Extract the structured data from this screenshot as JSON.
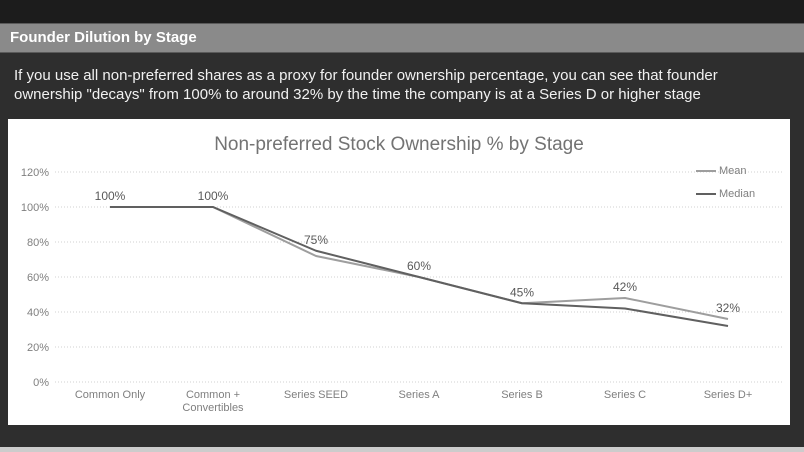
{
  "header": {
    "title": "Founder Dilution by Stage"
  },
  "description": {
    "line1": "If you use all non-preferred shares as a proxy for founder ownership percentage, you can see that founder",
    "line2": "ownership \"decays\" from 100% to around 32% by the time the company is at a Series D or higher stage"
  },
  "chart_data": {
    "type": "line",
    "title": "Non-preferred Stock Ownership % by Stage",
    "categories": [
      "Common Only",
      "Common +\nConvertibles",
      "Series SEED",
      "Series A",
      "Series B",
      "Series C",
      "Series D+"
    ],
    "series": [
      {
        "name": "Mean",
        "color": "#9e9e9e",
        "values": [
          100,
          100,
          72,
          60,
          45,
          48,
          36
        ]
      },
      {
        "name": "Median",
        "color": "#606060",
        "values": [
          100,
          100,
          75,
          60,
          45,
          42,
          32
        ]
      }
    ],
    "data_labels": [
      "100%",
      "100%",
      "75%",
      "60%",
      "45%",
      "42%",
      "32%"
    ],
    "y_ticks": [
      "0%",
      "20%",
      "40%",
      "60%",
      "80%",
      "100%",
      "120%"
    ],
    "ylim": [
      0,
      120
    ],
    "y_tick_step": 20,
    "grid": "horizontal-dotted",
    "legend_position": "top-right",
    "colors": {
      "title": "#737373",
      "axis_text": "#7f7f7f",
      "gridline": "#d2d2d2",
      "data_label": "#595959",
      "panel_bg": "#ffffff"
    }
  }
}
